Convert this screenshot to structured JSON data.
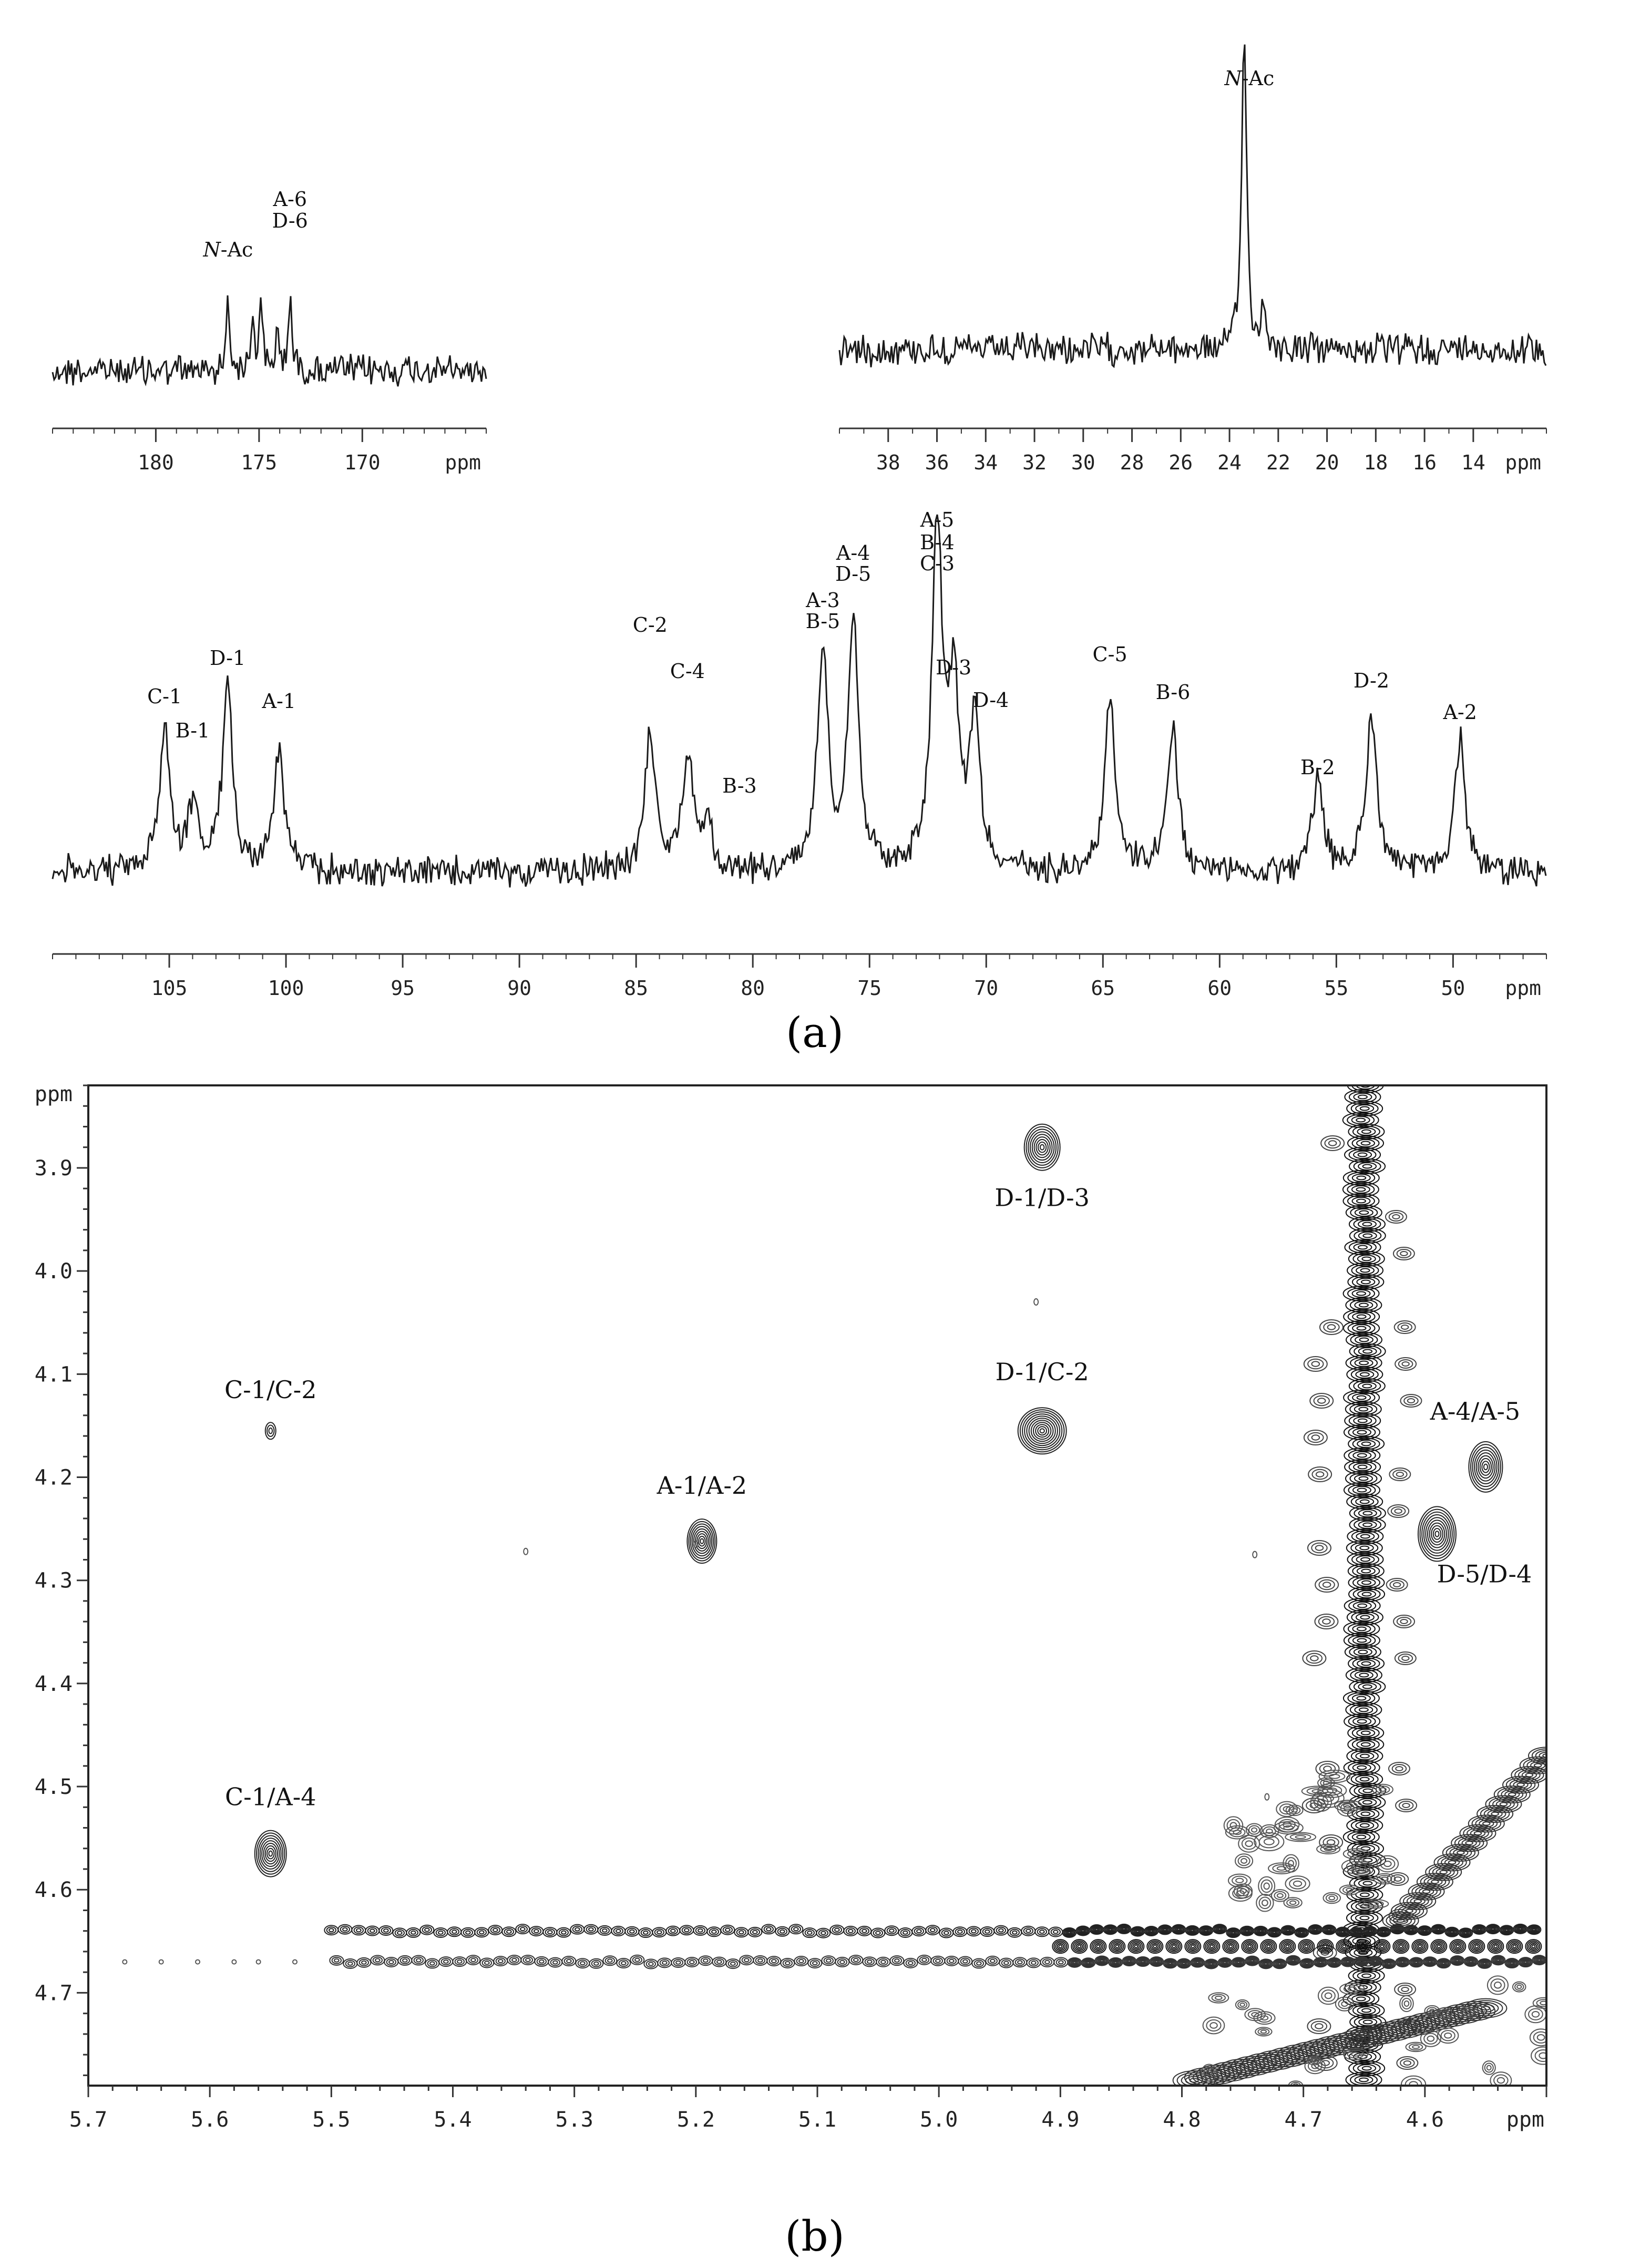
{
  "panel_a_caption": "(a)",
  "panel_b_caption": "(b)",
  "chart_data": [
    {
      "type": "line",
      "panel": "a",
      "part": "carbonyl region",
      "x_unit": "ppm",
      "xlim": [
        185,
        164
      ],
      "xticks": [
        180,
        175,
        170
      ],
      "peaks": [
        {
          "x": 176.5,
          "y": 0.4
        },
        {
          "x": 175.3,
          "y": 0.3
        },
        {
          "x": 174.9,
          "y": 0.32
        },
        {
          "x": 174.1,
          "y": 0.22
        },
        {
          "x": 173.5,
          "y": 0.42
        }
      ],
      "annotations": [
        {
          "text": "N-Ac",
          "x": 176.5,
          "italic_prefix": true
        },
        {
          "text": "A-6",
          "x": 173.5
        },
        {
          "text": "D-6",
          "x": 173.5
        }
      ]
    },
    {
      "type": "line",
      "panel": "a",
      "part": "methyl region",
      "x_unit": "ppm",
      "xlim": [
        40,
        11
      ],
      "xticks": [
        38,
        36,
        34,
        32,
        30,
        28,
        26,
        24,
        22,
        20,
        18,
        16,
        14
      ],
      "peaks": [
        {
          "x": 23.4,
          "y": 1.0
        },
        {
          "x": 22.6,
          "y": 0.12
        }
      ],
      "annotations": [
        {
          "text": "N-Ac",
          "x": 23.4,
          "italic_prefix": true
        }
      ]
    },
    {
      "type": "line",
      "panel": "a",
      "part": "ring region",
      "x_unit": "ppm",
      "xlim": [
        110,
        46
      ],
      "xticks": [
        105,
        100,
        95,
        90,
        85,
        80,
        75,
        70,
        65,
        60,
        55,
        50
      ],
      "peaks": [
        {
          "x": 105.2,
          "y": 0.36
        },
        {
          "x": 104.0,
          "y": 0.16
        },
        {
          "x": 102.5,
          "y": 0.45
        },
        {
          "x": 100.3,
          "y": 0.3
        },
        {
          "x": 84.4,
          "y": 0.35
        },
        {
          "x": 82.8,
          "y": 0.28
        },
        {
          "x": 82.0,
          "y": 0.12
        },
        {
          "x": 77.0,
          "y": 0.56
        },
        {
          "x": 75.7,
          "y": 0.63
        },
        {
          "x": 72.1,
          "y": 0.86
        },
        {
          "x": 71.4,
          "y": 0.42
        },
        {
          "x": 70.5,
          "y": 0.38
        },
        {
          "x": 64.7,
          "y": 0.44
        },
        {
          "x": 62.0,
          "y": 0.35
        },
        {
          "x": 55.8,
          "y": 0.22
        },
        {
          "x": 53.5,
          "y": 0.4
        },
        {
          "x": 49.7,
          "y": 0.33
        }
      ],
      "annotations": [
        {
          "text": "C-1",
          "x": 105.2
        },
        {
          "text": "B-1",
          "x": 104.0
        },
        {
          "text": "D-1",
          "x": 102.5
        },
        {
          "text": "A-1",
          "x": 100.3
        },
        {
          "text": "C-2",
          "x": 84.4
        },
        {
          "text": "C-4",
          "x": 82.8
        },
        {
          "text": "B-3",
          "x": 81.2
        },
        {
          "text": "A-3",
          "x": 77.0
        },
        {
          "text": "B-5",
          "x": 77.0
        },
        {
          "text": "A-4",
          "x": 75.7
        },
        {
          "text": "D-5",
          "x": 75.7
        },
        {
          "text": "A-5",
          "x": 72.1
        },
        {
          "text": "B-4",
          "x": 72.1
        },
        {
          "text": "C-3",
          "x": 72.1
        },
        {
          "text": "D-3",
          "x": 71.4
        },
        {
          "text": "D-4",
          "x": 69.8
        },
        {
          "text": "C-5",
          "x": 64.7
        },
        {
          "text": "B-6",
          "x": 62.0
        },
        {
          "text": "B-2",
          "x": 55.8
        },
        {
          "text": "D-2",
          "x": 53.5
        },
        {
          "text": "A-2",
          "x": 49.7
        }
      ]
    },
    {
      "type": "scatter",
      "panel": "b",
      "subtype": "2D NMR contour plot",
      "x_unit": "ppm",
      "y_unit": "ppm",
      "xlim": [
        5.7,
        4.5
      ],
      "ylim": [
        3.82,
        4.79
      ],
      "xticks": [
        5.7,
        5.6,
        5.5,
        5.4,
        5.3,
        5.2,
        5.1,
        5.0,
        4.9,
        4.8,
        4.7,
        4.6
      ],
      "yticks": [
        3.9,
        4.0,
        4.1,
        4.2,
        4.3,
        4.4,
        4.5,
        4.6,
        4.7
      ],
      "cross_peaks": [
        {
          "label": "C-1/C-2",
          "x": 5.55,
          "y": 4.155
        },
        {
          "label": "C-1/A-4",
          "x": 5.55,
          "y": 4.565
        },
        {
          "label": "A-1/A-2",
          "x": 5.195,
          "y": 4.262
        },
        {
          "label": "D-1/D-3",
          "x": 4.915,
          "y": 3.88
        },
        {
          "label": "D-1/C-2",
          "x": 4.915,
          "y": 4.155
        },
        {
          "label": "A-4/A-5",
          "x": 4.55,
          "y": 4.19
        },
        {
          "label": "D-5/D-4",
          "x": 4.59,
          "y": 4.255
        }
      ],
      "diagonal": true
    }
  ]
}
